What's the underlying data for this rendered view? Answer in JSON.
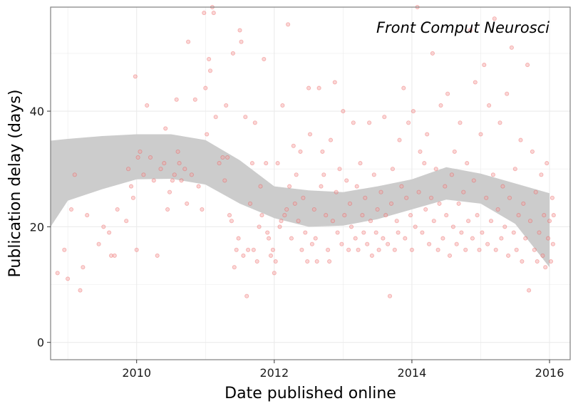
{
  "chart_data": {
    "type": "scatter",
    "title": "",
    "annotation": "Front Comput Neurosci",
    "xlabel": "Date published online",
    "ylabel": "Publication delay (days)",
    "xlim": [
      2008.75,
      2016.3
    ],
    "ylim": [
      -3,
      58
    ],
    "x_ticks": [
      2010,
      2012,
      2014,
      2016
    ],
    "x_tick_labels": [
      "2010",
      "2012",
      "2014",
      "2016"
    ],
    "x_minor_ticks": [
      2009,
      2011,
      2013,
      2015
    ],
    "y_ticks": [
      0,
      20,
      40
    ],
    "y_tick_labels": [
      "0",
      "20",
      "40"
    ],
    "y_minor_ticks": [
      10,
      30,
      50
    ],
    "grid": true,
    "colors": {
      "points_fill": "#f4a3a3",
      "points_stroke": "#e8433e",
      "band_fill": "#cccccc",
      "grid": "#ebebeb",
      "panel_border": "#7f7f7f"
    },
    "smooth_band": {
      "x": [
        2008.75,
        2009.0,
        2009.5,
        2010.0,
        2010.5,
        2011.0,
        2011.5,
        2012.0,
        2012.5,
        2013.0,
        2013.5,
        2014.0,
        2014.5,
        2015.0,
        2015.5,
        2016.0
      ],
      "upper": [
        34.9,
        35.2,
        35.7,
        36.0,
        36.0,
        35.0,
        31.5,
        27.0,
        26.3,
        26.0,
        27.0,
        28.2,
        30.3,
        29.2,
        27.5,
        25.8
      ],
      "lower": [
        20.0,
        24.5,
        26.5,
        28.2,
        28.3,
        27.3,
        24.0,
        21.5,
        20.0,
        20.2,
        21.3,
        23.0,
        24.7,
        24.0,
        20.5,
        13.0
      ]
    },
    "series": [
      {
        "name": "articles",
        "points": [
          [
            2008.85,
            12
          ],
          [
            2008.95,
            16
          ],
          [
            2009.0,
            11
          ],
          [
            2009.05,
            23
          ],
          [
            2009.1,
            29
          ],
          [
            2009.18,
            9
          ],
          [
            2009.22,
            13
          ],
          [
            2009.28,
            22
          ],
          [
            2009.45,
            17
          ],
          [
            2009.52,
            20
          ],
          [
            2009.6,
            19
          ],
          [
            2009.63,
            15
          ],
          [
            2009.68,
            15
          ],
          [
            2009.72,
            23
          ],
          [
            2009.85,
            21
          ],
          [
            2009.88,
            30
          ],
          [
            2009.92,
            27
          ],
          [
            2009.95,
            25
          ],
          [
            2009.98,
            46
          ],
          [
            2010.0,
            16
          ],
          [
            2010.02,
            32
          ],
          [
            2010.05,
            33
          ],
          [
            2010.1,
            29
          ],
          [
            2010.15,
            41
          ],
          [
            2010.2,
            32
          ],
          [
            2010.25,
            28
          ],
          [
            2010.3,
            15
          ],
          [
            2010.35,
            30
          ],
          [
            2010.4,
            31
          ],
          [
            2010.42,
            37
          ],
          [
            2010.45,
            23
          ],
          [
            2010.48,
            26
          ],
          [
            2010.52,
            28
          ],
          [
            2010.55,
            29
          ],
          [
            2010.58,
            42
          ],
          [
            2010.6,
            33
          ],
          [
            2010.62,
            31
          ],
          [
            2010.65,
            28
          ],
          [
            2010.7,
            30
          ],
          [
            2010.73,
            24
          ],
          [
            2010.75,
            52
          ],
          [
            2010.8,
            29
          ],
          [
            2010.85,
            42
          ],
          [
            2010.9,
            27
          ],
          [
            2010.95,
            23
          ],
          [
            2010.98,
            57
          ],
          [
            2011.0,
            44
          ],
          [
            2011.02,
            36
          ],
          [
            2011.05,
            49
          ],
          [
            2011.07,
            47
          ],
          [
            2011.1,
            58
          ],
          [
            2011.12,
            57
          ],
          [
            2011.15,
            39
          ],
          [
            2011.2,
            31
          ],
          [
            2011.25,
            32
          ],
          [
            2011.28,
            28
          ],
          [
            2011.3,
            41
          ],
          [
            2011.32,
            32
          ],
          [
            2011.35,
            22
          ],
          [
            2011.38,
            21
          ],
          [
            2011.4,
            50
          ],
          [
            2011.42,
            13
          ],
          [
            2011.45,
            16
          ],
          [
            2011.48,
            18
          ],
          [
            2011.5,
            54
          ],
          [
            2011.52,
            52
          ],
          [
            2011.55,
            15
          ],
          [
            2011.58,
            39
          ],
          [
            2011.6,
            8
          ],
          [
            2011.62,
            16
          ],
          [
            2011.65,
            24
          ],
          [
            2011.68,
            31
          ],
          [
            2011.7,
            16
          ],
          [
            2011.72,
            38
          ],
          [
            2011.75,
            14
          ],
          [
            2011.78,
            20
          ],
          [
            2011.8,
            27
          ],
          [
            2011.82,
            22
          ],
          [
            2011.85,
            49
          ],
          [
            2011.88,
            31
          ],
          [
            2011.9,
            19
          ],
          [
            2011.92,
            18
          ],
          [
            2011.95,
            15
          ],
          [
            2011.98,
            16
          ],
          [
            2012.0,
            12
          ],
          [
            2012.02,
            14
          ],
          [
            2012.05,
            31
          ],
          [
            2012.08,
            20
          ],
          [
            2012.1,
            21
          ],
          [
            2012.12,
            41
          ],
          [
            2012.15,
            22
          ],
          [
            2012.18,
            23
          ],
          [
            2012.2,
            55
          ],
          [
            2012.22,
            27
          ],
          [
            2012.25,
            18
          ],
          [
            2012.28,
            34
          ],
          [
            2012.3,
            24
          ],
          [
            2012.32,
            29
          ],
          [
            2012.35,
            21
          ],
          [
            2012.38,
            33
          ],
          [
            2012.4,
            16
          ],
          [
            2012.42,
            25
          ],
          [
            2012.45,
            19
          ],
          [
            2012.48,
            14
          ],
          [
            2012.5,
            44
          ],
          [
            2012.52,
            36
          ],
          [
            2012.55,
            17
          ],
          [
            2012.58,
            23
          ],
          [
            2012.6,
            18
          ],
          [
            2012.62,
            14
          ],
          [
            2012.65,
            44
          ],
          [
            2012.68,
            27
          ],
          [
            2012.7,
            33
          ],
          [
            2012.72,
            29
          ],
          [
            2012.75,
            22
          ],
          [
            2012.78,
            16
          ],
          [
            2012.8,
            14
          ],
          [
            2012.82,
            35
          ],
          [
            2012.85,
            21
          ],
          [
            2012.88,
            45
          ],
          [
            2012.9,
            26
          ],
          [
            2012.92,
            19
          ],
          [
            2012.95,
            30
          ],
          [
            2012.98,
            17
          ],
          [
            2013.0,
            40
          ],
          [
            2013.02,
            22
          ],
          [
            2013.05,
            28
          ],
          [
            2013.08,
            16
          ],
          [
            2013.1,
            24
          ],
          [
            2013.12,
            20
          ],
          [
            2013.15,
            38
          ],
          [
            2013.18,
            18
          ],
          [
            2013.2,
            27
          ],
          [
            2013.22,
            16
          ],
          [
            2013.25,
            31
          ],
          [
            2013.28,
            22
          ],
          [
            2013.3,
            19
          ],
          [
            2013.32,
            25
          ],
          [
            2013.35,
            17
          ],
          [
            2013.38,
            38
          ],
          [
            2013.4,
            21
          ],
          [
            2013.42,
            15
          ],
          [
            2013.45,
            29
          ],
          [
            2013.48,
            19
          ],
          [
            2013.5,
            23
          ],
          [
            2013.52,
            16
          ],
          [
            2013.55,
            26
          ],
          [
            2013.58,
            18
          ],
          [
            2013.6,
            39
          ],
          [
            2013.62,
            22
          ],
          [
            2013.65,
            17
          ],
          [
            2013.68,
            8
          ],
          [
            2013.7,
            24
          ],
          [
            2013.72,
            30
          ],
          [
            2013.75,
            16
          ],
          [
            2013.78,
            21
          ],
          [
            2013.8,
            19
          ],
          [
            2013.82,
            35
          ],
          [
            2013.85,
            27
          ],
          [
            2013.88,
            44
          ],
          [
            2013.9,
            18
          ],
          [
            2013.92,
            25
          ],
          [
            2013.95,
            38
          ],
          [
            2013.98,
            22
          ],
          [
            2014.0,
            16
          ],
          [
            2014.02,
            40
          ],
          [
            2014.05,
            20
          ],
          [
            2014.08,
            58
          ],
          [
            2014.1,
            26
          ],
          [
            2014.12,
            33
          ],
          [
            2014.15,
            19
          ],
          [
            2014.18,
            31
          ],
          [
            2014.2,
            23
          ],
          [
            2014.22,
            36
          ],
          [
            2014.25,
            17
          ],
          [
            2014.28,
            25
          ],
          [
            2014.3,
            50
          ],
          [
            2014.32,
            21
          ],
          [
            2014.35,
            30
          ],
          [
            2014.38,
            16
          ],
          [
            2014.4,
            24
          ],
          [
            2014.42,
            41
          ],
          [
            2014.45,
            18
          ],
          [
            2014.48,
            27
          ],
          [
            2014.5,
            22
          ],
          [
            2014.52,
            43
          ],
          [
            2014.55,
            15
          ],
          [
            2014.58,
            29
          ],
          [
            2014.6,
            20
          ],
          [
            2014.62,
            33
          ],
          [
            2014.65,
            17
          ],
          [
            2014.68,
            24
          ],
          [
            2014.7,
            38
          ],
          [
            2014.72,
            19
          ],
          [
            2014.75,
            26
          ],
          [
            2014.78,
            16
          ],
          [
            2014.8,
            31
          ],
          [
            2014.82,
            21
          ],
          [
            2014.85,
            54
          ],
          [
            2014.88,
            18
          ],
          [
            2014.9,
            28
          ],
          [
            2014.92,
            45
          ],
          [
            2014.95,
            22
          ],
          [
            2014.98,
            16
          ],
          [
            2015.0,
            36
          ],
          [
            2015.02,
            19
          ],
          [
            2015.05,
            48
          ],
          [
            2015.08,
            25
          ],
          [
            2015.1,
            17
          ],
          [
            2015.12,
            41
          ],
          [
            2015.15,
            21
          ],
          [
            2015.18,
            29
          ],
          [
            2015.2,
            56
          ],
          [
            2015.22,
            16
          ],
          [
            2015.25,
            23
          ],
          [
            2015.28,
            38
          ],
          [
            2015.3,
            18
          ],
          [
            2015.32,
            27
          ],
          [
            2015.35,
            20
          ],
          [
            2015.38,
            43
          ],
          [
            2015.4,
            15
          ],
          [
            2015.42,
            25
          ],
          [
            2015.45,
            51
          ],
          [
            2015.48,
            19
          ],
          [
            2015.5,
            30
          ],
          [
            2015.52,
            16
          ],
          [
            2015.55,
            22
          ],
          [
            2015.58,
            35
          ],
          [
            2015.6,
            14
          ],
          [
            2015.62,
            24
          ],
          [
            2015.65,
            18
          ],
          [
            2015.68,
            48
          ],
          [
            2015.7,
            9
          ],
          [
            2015.72,
            21
          ],
          [
            2015.75,
            33
          ],
          [
            2015.78,
            16
          ],
          [
            2015.8,
            26
          ],
          [
            2015.82,
            14
          ],
          [
            2015.85,
            19
          ],
          [
            2015.88,
            29
          ],
          [
            2015.9,
            15
          ],
          [
            2015.92,
            22
          ],
          [
            2015.94,
            13
          ],
          [
            2015.96,
            31
          ],
          [
            2015.98,
            18
          ],
          [
            2016.0,
            21
          ],
          [
            2016.02,
            14
          ],
          [
            2016.04,
            25
          ],
          [
            2016.05,
            17
          ],
          [
            2016.06,
            22
          ]
        ]
      }
    ]
  }
}
